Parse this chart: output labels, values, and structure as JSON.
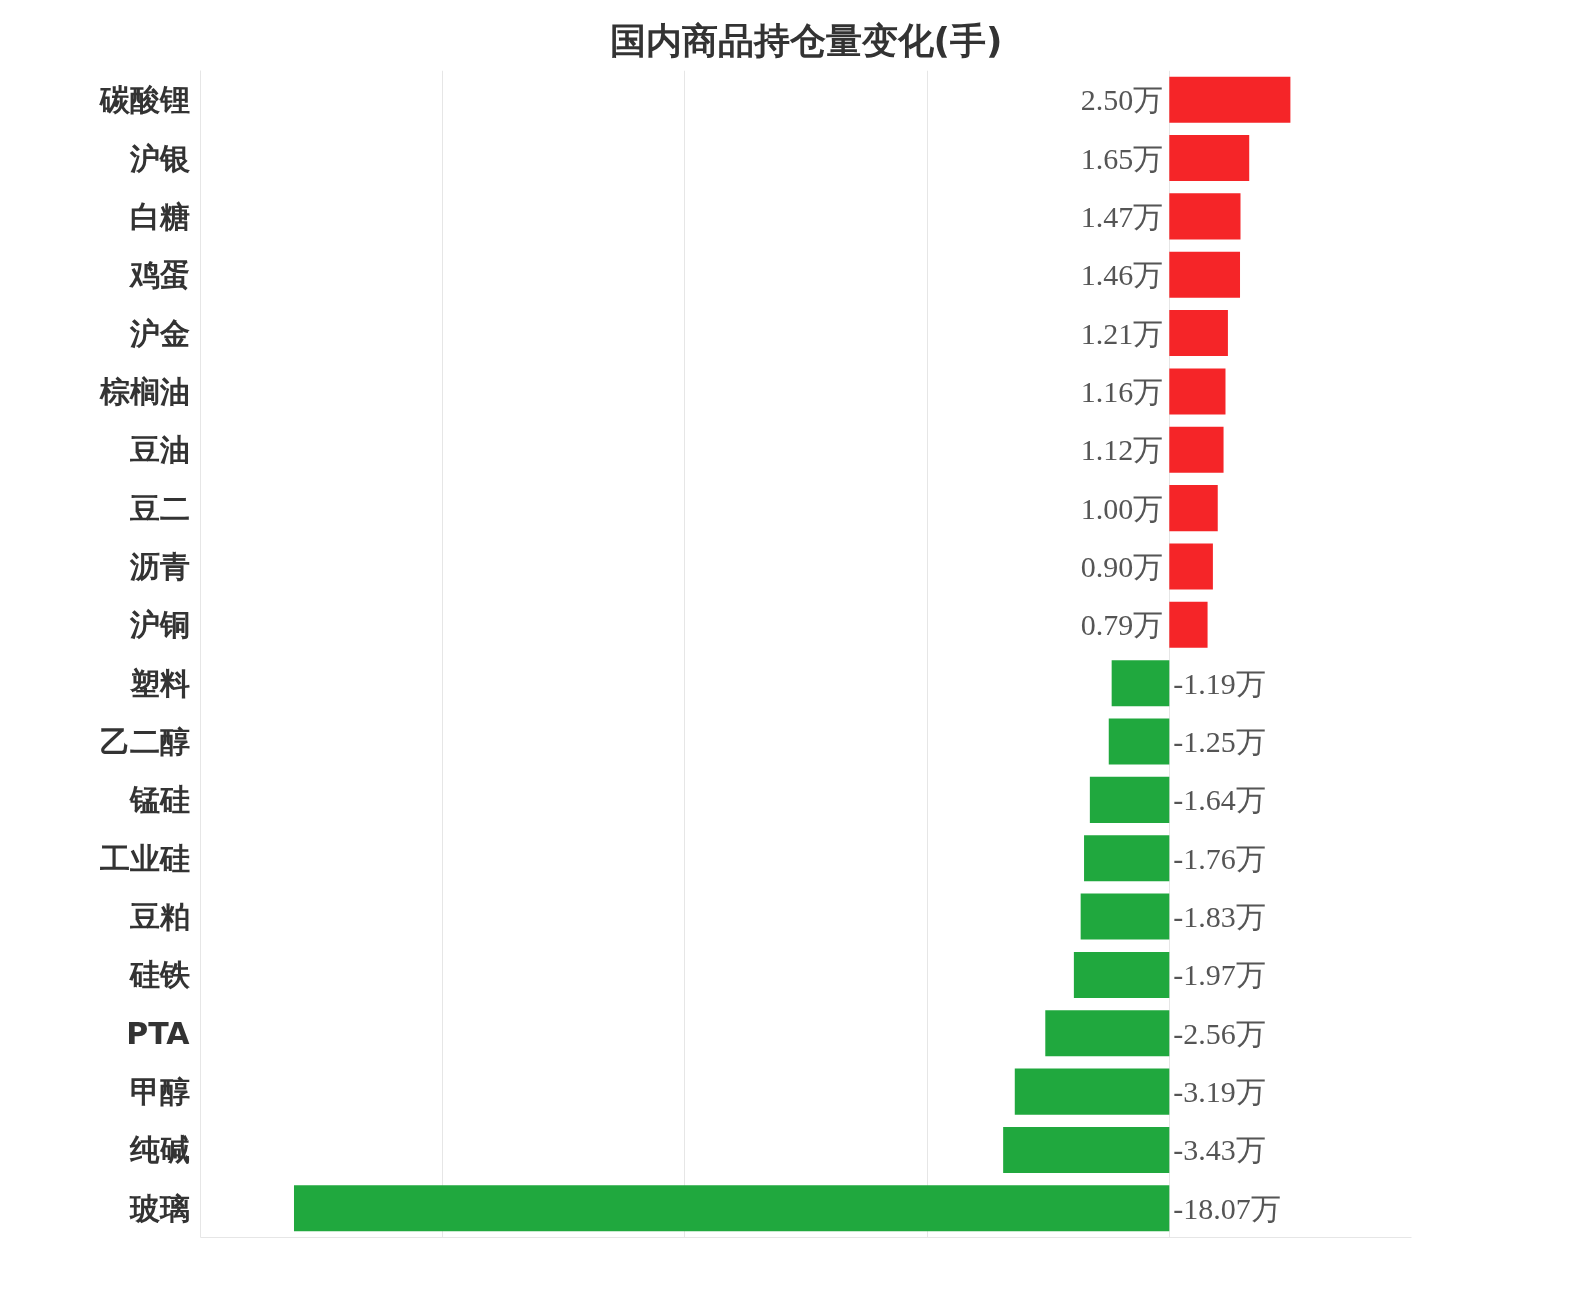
{
  "chart_data": {
    "type": "bar",
    "orientation": "horizontal",
    "title": "国内商品持仓量变化(手)",
    "categories": [
      "碳酸锂",
      "沪银",
      "白糖",
      "鸡蛋",
      "沪金",
      "棕榈油",
      "豆油",
      "豆二",
      "沥青",
      "沪铜",
      "塑料",
      "乙二醇",
      "锰硅",
      "工业硅",
      "豆粕",
      "硅铁",
      "PTA",
      "甲醇",
      "纯碱",
      "玻璃"
    ],
    "values": [
      2.5,
      1.65,
      1.47,
      1.46,
      1.21,
      1.16,
      1.12,
      1.0,
      0.9,
      0.79,
      -1.19,
      -1.25,
      -1.64,
      -1.76,
      -1.83,
      -1.97,
      -2.56,
      -3.19,
      -3.43,
      -18.07
    ],
    "value_labels": [
      "2.50万",
      "1.65万",
      "1.47万",
      "1.46万",
      "1.21万",
      "1.16万",
      "1.12万",
      "1.00万",
      "0.90万",
      "0.79万",
      "-1.19万",
      "-1.25万",
      "-1.64万",
      "-1.76万",
      "-1.83万",
      "-1.97万",
      "-2.56万",
      "-3.19万",
      "-3.43万",
      "-18.07万"
    ],
    "colors": [
      "#f52528",
      "#f52528",
      "#f52528",
      "#f52528",
      "#f52528",
      "#f52528",
      "#f52528",
      "#f52528",
      "#f52528",
      "#f52528",
      "#20a83e",
      "#20a83e",
      "#20a83e",
      "#20a83e",
      "#20a83e",
      "#20a83e",
      "#20a83e",
      "#20a83e",
      "#20a83e",
      "#20a83e"
    ],
    "xlim": [
      -20,
      5
    ],
    "xticks": [
      {
        "value": -20,
        "label": null
      },
      {
        "value": -15,
        "label": null
      },
      {
        "value": -10,
        "label": null
      },
      {
        "value": -5,
        "label": null
      },
      {
        "value": 0,
        "label": null
      }
    ],
    "grid": "x",
    "tick_labels": "y"
  }
}
